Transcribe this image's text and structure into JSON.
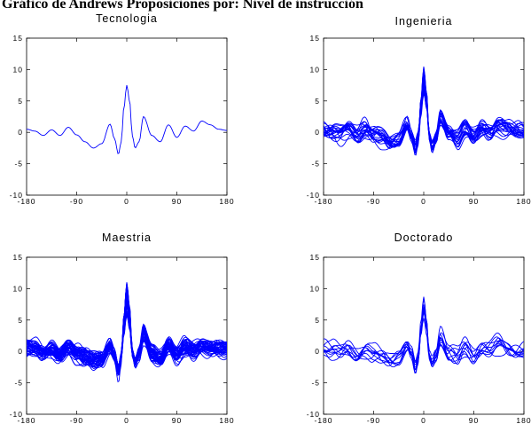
{
  "figure": {
    "title": "Gráfico de Andrews Proposiciones por:  Nivel de  instrucción",
    "line_color": "#0000ff"
  },
  "chart_data": [
    {
      "type": "line",
      "title": "Tecnologia",
      "xlim": [
        -180,
        180
      ],
      "ylim": [
        -10,
        15
      ],
      "xticks": [
        -180,
        -90,
        0,
        90,
        180
      ],
      "yticks": [
        -10,
        -5,
        0,
        5,
        10,
        15
      ],
      "grid": false,
      "curves": 1,
      "series": [
        {
          "x": [
            -180,
            -165,
            -150,
            -135,
            -120,
            -105,
            -90,
            -75,
            -60,
            -45,
            -30,
            -22,
            -15,
            -10,
            -5,
            0,
            5,
            10,
            15,
            22,
            30,
            45,
            60,
            75,
            90,
            105,
            120,
            135,
            150,
            165,
            180
          ],
          "y": [
            0.5,
            0.2,
            -0.5,
            0.4,
            -0.5,
            0.8,
            -0.4,
            -1.5,
            -2.5,
            -1.8,
            1.3,
            -1.0,
            -3.5,
            -1.5,
            4.0,
            7.5,
            5.0,
            -0.5,
            -2.5,
            -1.5,
            2.5,
            -0.5,
            -1.5,
            1.2,
            -0.8,
            1.0,
            0.2,
            1.8,
            1.2,
            0.5,
            0.3
          ]
        }
      ]
    },
    {
      "type": "line",
      "title": "Ingenieria",
      "xlim": [
        -180,
        180
      ],
      "ylim": [
        -10,
        15
      ],
      "xticks": [
        -180,
        -90,
        0,
        90,
        180
      ],
      "yticks": [
        -10,
        -5,
        0,
        5,
        10,
        15
      ],
      "grid": false,
      "curves": 22,
      "series": [
        {
          "x": [
            -180,
            -165,
            -150,
            -135,
            -120,
            -105,
            -90,
            -75,
            -60,
            -45,
            -30,
            -22,
            -15,
            -10,
            -5,
            0,
            5,
            10,
            15,
            22,
            30,
            45,
            60,
            75,
            90,
            105,
            120,
            135,
            150,
            165,
            180
          ],
          "y": [
            0.5,
            0.3,
            -0.3,
            0.4,
            -0.4,
            0.6,
            -0.5,
            -0.8,
            -1.5,
            -1.2,
            1.0,
            -0.8,
            -3.0,
            -1.0,
            4.5,
            9.0,
            5.5,
            -0.5,
            -2.5,
            -1.0,
            2.5,
            -0.3,
            -1.2,
            1.0,
            -0.6,
            0.8,
            0.0,
            1.0,
            0.8,
            0.4,
            0.3
          ]
        }
      ]
    },
    {
      "type": "line",
      "title": "Maestria",
      "xlim": [
        -180,
        180
      ],
      "ylim": [
        -10,
        15
      ],
      "xticks": [
        -180,
        -90,
        0,
        90,
        180
      ],
      "yticks": [
        -10,
        -5,
        0,
        5,
        10,
        15
      ],
      "grid": false,
      "curves": 45,
      "series": [
        {
          "x": [
            -180,
            -165,
            -150,
            -135,
            -120,
            -105,
            -90,
            -75,
            -60,
            -45,
            -30,
            -22,
            -15,
            -10,
            -5,
            0,
            5,
            10,
            15,
            22,
            30,
            45,
            60,
            75,
            90,
            105,
            120,
            135,
            150,
            165,
            180
          ],
          "y": [
            0.8,
            0.5,
            -0.3,
            0.5,
            -0.4,
            0.7,
            -0.4,
            -0.8,
            -1.4,
            -1.2,
            1.0,
            -0.7,
            -3.5,
            -1.0,
            4.8,
            9.5,
            6.0,
            -0.3,
            -2.0,
            -0.5,
            3.0,
            -0.2,
            -1.0,
            1.2,
            -0.5,
            0.8,
            0.2,
            1.0,
            0.6,
            0.6,
            0.5
          ]
        }
      ]
    },
    {
      "type": "line",
      "title": "Doctorado",
      "xlim": [
        -180,
        180
      ],
      "ylim": [
        -10,
        15
      ],
      "xticks": [
        -180,
        -90,
        0,
        90,
        180
      ],
      "yticks": [
        -10,
        -5,
        0,
        5,
        10,
        15
      ],
      "grid": false,
      "curves": 10,
      "series": [
        {
          "x": [
            -180,
            -165,
            -150,
            -135,
            -120,
            -105,
            -90,
            -75,
            -60,
            -45,
            -30,
            -22,
            -15,
            -10,
            -5,
            0,
            5,
            10,
            15,
            22,
            30,
            45,
            60,
            75,
            90,
            105,
            120,
            135,
            150,
            165,
            180
          ],
          "y": [
            1.0,
            0.2,
            -0.5,
            0.3,
            -0.3,
            0.5,
            -0.5,
            -1.0,
            -1.5,
            -1.0,
            0.8,
            -0.5,
            -3.0,
            -1.2,
            4.2,
            8.5,
            5.0,
            -0.5,
            -2.0,
            -0.8,
            2.5,
            -0.5,
            -1.0,
            1.0,
            -0.5,
            0.8,
            0.3,
            1.2,
            0.5,
            0.3,
            0.5
          ]
        }
      ]
    }
  ]
}
